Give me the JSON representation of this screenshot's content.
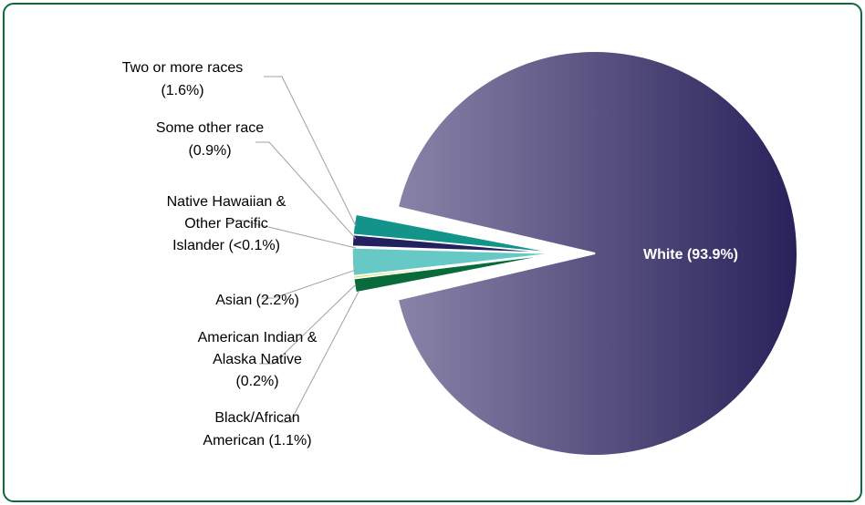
{
  "chart_data": {
    "type": "pie",
    "title": "",
    "slices": [
      {
        "label_lines": [
          "White (93.9%)"
        ],
        "category": "White",
        "value": 93.9,
        "color": "#302b62"
      },
      {
        "label_lines": [
          "Black/African",
          "American (1.1%)"
        ],
        "category": "Black/African American",
        "value": 1.1,
        "color": "#0a6b3a"
      },
      {
        "label_lines": [
          "American Indian &",
          "Alaska Native",
          "(0.2%)"
        ],
        "category": "American Indian & Alaska Native",
        "value": 0.2,
        "color": "#d9e65c"
      },
      {
        "label_lines": [
          "Asian (2.2%)"
        ],
        "category": "Asian",
        "value": 2.2,
        "color": "#66c9c6"
      },
      {
        "label_lines": [
          "Native Hawaiian &",
          "Other Pacific",
          "Islander (<0.1%)"
        ],
        "category": "Native Hawaiian & Other Pacific Islander",
        "value": 0.05,
        "color": "#5a8fb0"
      },
      {
        "label_lines": [
          "Some other race",
          "(0.9%)"
        ],
        "category": "Some other race",
        "value": 0.9,
        "color": "#232060"
      },
      {
        "label_lines": [
          "Two or more races",
          "(1.6%)"
        ],
        "category": "Two or more races",
        "value": 1.6,
        "color": "#13948a"
      }
    ],
    "gradient": {
      "light": "#8a83a8",
      "dark": "#28225a"
    },
    "border_color": "#0b6b3a"
  }
}
